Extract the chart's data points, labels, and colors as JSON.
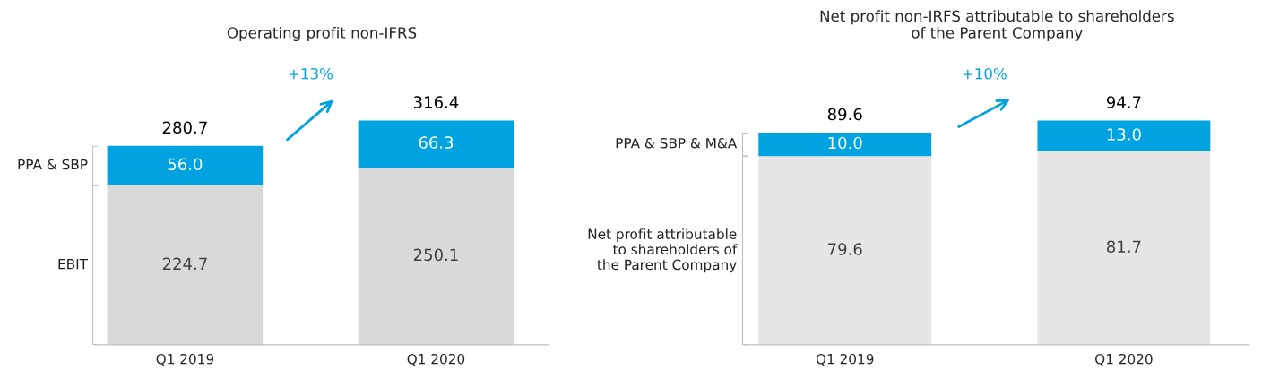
{
  "chart_data": [
    {
      "type": "bar",
      "title": "Operating profit non-IFRS",
      "categories": [
        "Q1 2019",
        "Q1 2020"
      ],
      "stacked": true,
      "totals": [
        "280.7",
        "316.4"
      ],
      "annotations": [
        "+13%"
      ],
      "series": [
        {
          "name": "EBIT",
          "color": "#d9d9d9",
          "values": [
            224.7,
            250.1
          ],
          "value_labels": [
            "224.7",
            "250.1"
          ]
        },
        {
          "name": "PPA & SBP",
          "color": "#00a3e0",
          "values": [
            56.0,
            66.3
          ],
          "value_labels": [
            "56.0",
            "66.3"
          ]
        }
      ]
    },
    {
      "type": "bar",
      "title": "Net profit non-IRFS attributable to shareholders\nof the Parent Company",
      "categories": [
        "Q1 2019",
        "Q1 2020"
      ],
      "stacked": true,
      "totals": [
        "89.6",
        "94.7"
      ],
      "annotations": [
        "+10%"
      ],
      "series": [
        {
          "name": "Net profit attributable\nto shareholders of\nthe Parent Company",
          "color": "#e6e6e6",
          "values": [
            79.6,
            81.7
          ],
          "value_labels": [
            "79.6",
            "81.7"
          ]
        },
        {
          "name": "PPA & SBP & M&A",
          "color": "#00a3e0",
          "values": [
            10.0,
            13.0
          ],
          "value_labels": [
            "10.0",
            "13.0"
          ]
        }
      ]
    }
  ]
}
